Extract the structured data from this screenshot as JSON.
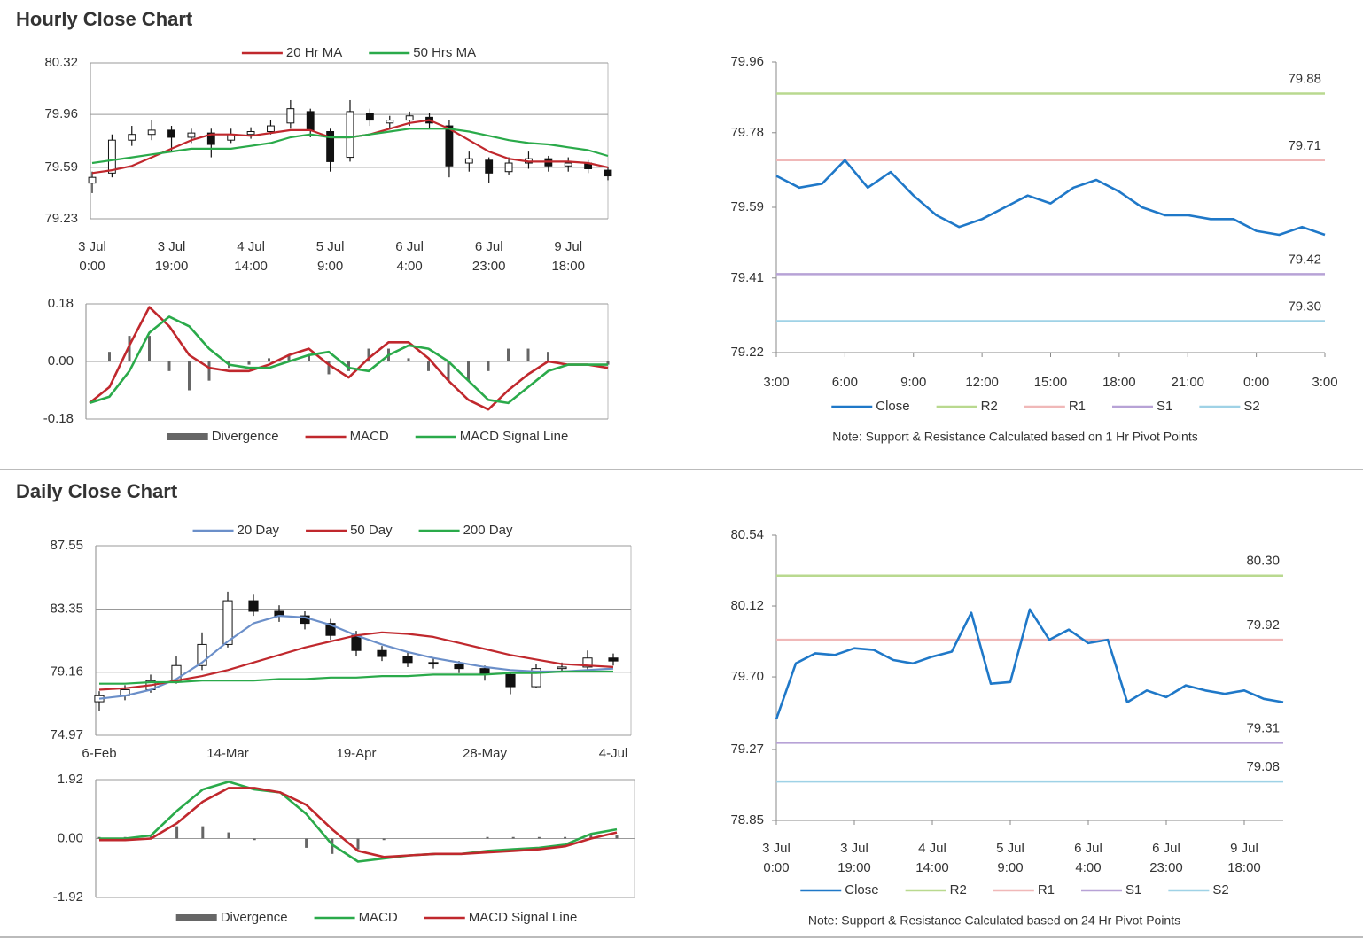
{
  "headings": [
    "Hourly Close Chart",
    "Daily Close Chart"
  ],
  "chart_data": [
    {
      "type": "candlestick",
      "grid": true,
      "ylim": [
        79.23,
        80.32
      ],
      "yticks": [
        80.32,
        79.96,
        79.59,
        79.23
      ],
      "candle_color": "#111111",
      "categories": [
        [
          "3 Jul",
          "0:00"
        ],
        null,
        null,
        null,
        [
          "3 Jul",
          "19:00"
        ],
        null,
        null,
        null,
        [
          "4 Jul",
          "14:00"
        ],
        null,
        null,
        null,
        [
          "5 Jul",
          "9:00"
        ],
        null,
        null,
        null,
        [
          "6 Jul",
          "4:00"
        ],
        null,
        null,
        null,
        [
          "6 Jul",
          "23:00"
        ],
        null,
        null,
        null,
        [
          "9 Jul",
          "18:00"
        ],
        null,
        null
      ],
      "open": [
        79.48,
        79.55,
        79.78,
        79.82,
        79.85,
        79.8,
        79.83,
        79.78,
        79.82,
        79.84,
        79.9,
        79.98,
        79.84,
        79.66,
        79.97,
        79.9,
        79.92,
        79.94,
        79.88,
        79.62,
        79.64,
        79.56,
        79.62,
        79.65,
        79.6,
        79.62,
        79.57
      ],
      "high": [
        79.56,
        79.82,
        79.88,
        79.92,
        79.88,
        79.86,
        79.86,
        79.86,
        79.87,
        79.92,
        80.06,
        80.0,
        79.86,
        80.06,
        80.0,
        79.95,
        79.98,
        79.97,
        79.92,
        79.7,
        79.66,
        79.66,
        79.7,
        79.67,
        79.66,
        79.64,
        79.59
      ],
      "low": [
        79.41,
        79.52,
        79.74,
        79.78,
        79.7,
        79.76,
        79.66,
        79.76,
        79.79,
        79.82,
        79.86,
        79.8,
        79.56,
        79.63,
        79.88,
        79.86,
        79.88,
        79.86,
        79.52,
        79.56,
        79.48,
        79.54,
        79.58,
        79.56,
        79.56,
        79.55,
        79.5
      ],
      "close": [
        79.52,
        79.78,
        79.82,
        79.85,
        79.8,
        79.83,
        79.75,
        79.82,
        79.84,
        79.88,
        80.0,
        79.85,
        79.63,
        79.98,
        79.92,
        79.92,
        79.95,
        79.9,
        79.6,
        79.65,
        79.55,
        79.62,
        79.65,
        79.6,
        79.62,
        79.58,
        79.53
      ],
      "series": [
        {
          "name": "20 Hr MA",
          "color": "#c0282d",
          "values": [
            79.55,
            79.57,
            79.6,
            79.66,
            79.72,
            79.78,
            79.82,
            79.82,
            79.81,
            79.83,
            79.85,
            79.85,
            79.8,
            79.8,
            79.82,
            79.86,
            79.9,
            79.92,
            79.86,
            79.78,
            79.7,
            79.65,
            79.63,
            79.63,
            79.63,
            79.62,
            79.59
          ]
        },
        {
          "name": "50 Hrs MA",
          "color": "#2aaa4a",
          "values": [
            79.62,
            79.64,
            79.66,
            79.68,
            79.7,
            79.72,
            79.72,
            79.72,
            79.74,
            79.76,
            79.8,
            79.82,
            79.8,
            79.8,
            79.82,
            79.84,
            79.86,
            79.86,
            79.86,
            79.84,
            79.81,
            79.78,
            79.76,
            79.75,
            79.73,
            79.71,
            79.67
          ]
        }
      ]
    },
    {
      "type": "macd",
      "grid": true,
      "ylim": [
        -0.18,
        0.18
      ],
      "yticks": [
        0.18,
        {
          "value": 0,
          "label": "0.00"
        },
        -0.18
      ],
      "series": [
        {
          "name": "Divergence",
          "type": "bar",
          "color": "#666666",
          "values": [
            0.0,
            0.03,
            0.08,
            0.08,
            -0.03,
            -0.09,
            -0.06,
            -0.02,
            -0.01,
            0.01,
            0.02,
            0.02,
            -0.04,
            -0.03,
            0.04,
            0.04,
            0.01,
            -0.03,
            -0.06,
            -0.06,
            -0.03,
            0.04,
            0.04,
            0.03,
            0.0,
            0.0,
            -0.01
          ]
        },
        {
          "name": "MACD",
          "type": "line",
          "color": "#c0282d",
          "values": [
            -0.13,
            -0.08,
            0.05,
            0.17,
            0.11,
            0.02,
            -0.02,
            -0.03,
            -0.03,
            -0.01,
            0.02,
            0.04,
            -0.01,
            -0.05,
            0.01,
            0.06,
            0.06,
            0.01,
            -0.06,
            -0.12,
            -0.15,
            -0.09,
            -0.04,
            0.0,
            -0.01,
            -0.01,
            -0.02
          ]
        },
        {
          "name": "MACD Signal Line",
          "type": "line",
          "color": "#2aaa4a",
          "values": [
            -0.13,
            -0.11,
            -0.03,
            0.09,
            0.14,
            0.11,
            0.04,
            -0.01,
            -0.02,
            -0.02,
            0.0,
            0.02,
            0.03,
            -0.02,
            -0.03,
            0.02,
            0.05,
            0.04,
            0.0,
            -0.06,
            -0.12,
            -0.13,
            -0.08,
            -0.03,
            -0.01,
            -0.01,
            -0.01
          ]
        }
      ]
    },
    {
      "type": "line",
      "grid": false,
      "ylim": [
        79.22,
        79.96
      ],
      "yticks": [
        79.96,
        79.78,
        79.59,
        79.41,
        79.22
      ],
      "categories": [
        "3:00",
        null,
        null,
        "6:00",
        null,
        null,
        "9:00",
        null,
        null,
        "12:00",
        null,
        null,
        "15:00",
        null,
        null,
        "18:00",
        null,
        null,
        "21:00",
        null,
        null,
        "0:00",
        null,
        null,
        "3:00"
      ],
      "series": [
        {
          "name": "Close",
          "color": "#1f78c8",
          "values": [
            79.67,
            79.64,
            79.65,
            79.71,
            79.64,
            79.68,
            79.62,
            79.57,
            79.54,
            79.56,
            79.59,
            79.62,
            79.6,
            79.64,
            79.66,
            79.63,
            79.59,
            79.57,
            79.57,
            79.56,
            79.56,
            79.53,
            79.52,
            79.54,
            79.52
          ]
        }
      ],
      "levels": [
        {
          "name": "R2",
          "color": "#b9d98f",
          "value": 79.88
        },
        {
          "name": "R1",
          "color": "#f0b8b8",
          "value": 79.71
        },
        {
          "name": "S1",
          "color": "#b7a2d6",
          "value": 79.42
        },
        {
          "name": "S2",
          "color": "#9fd2e6",
          "value": 79.3,
          "value_label": "79.30"
        }
      ],
      "note": "Note: Support & Resistance Calculated based on 1 Hr Pivot Points"
    },
    {
      "type": "candlestick",
      "grid": true,
      "ylim": [
        74.97,
        87.55
      ],
      "yticks": [
        87.55,
        83.35,
        79.16,
        74.97
      ],
      "candle_color": "#111111",
      "categories": [
        "6-Feb",
        null,
        null,
        null,
        null,
        "14-Mar",
        null,
        null,
        null,
        null,
        "19-Apr",
        null,
        null,
        null,
        null,
        "28-May",
        null,
        null,
        null,
        null,
        "4-Jul"
      ],
      "open": [
        77.2,
        77.6,
        78.0,
        78.6,
        79.6,
        81.0,
        83.9,
        83.2,
        82.9,
        82.4,
        81.6,
        80.6,
        80.2,
        79.8,
        79.7,
        79.4,
        79.0,
        78.2,
        79.4,
        79.5,
        80.1
      ],
      "high": [
        77.9,
        78.3,
        79.0,
        80.2,
        81.8,
        84.5,
        84.3,
        83.6,
        83.2,
        82.7,
        81.9,
        80.9,
        80.5,
        80.1,
        79.9,
        79.6,
        79.2,
        79.7,
        79.8,
        80.6,
        80.4
      ],
      "low": [
        76.6,
        77.3,
        77.8,
        78.4,
        79.3,
        80.8,
        82.9,
        82.5,
        82.0,
        81.3,
        80.2,
        79.9,
        79.5,
        79.4,
        79.1,
        78.6,
        77.7,
        78.1,
        79.2,
        79.3,
        79.6
      ],
      "close": [
        77.6,
        78.0,
        78.6,
        79.6,
        81.0,
        83.9,
        83.2,
        82.9,
        82.4,
        81.6,
        80.6,
        80.2,
        79.8,
        79.7,
        79.4,
        79.0,
        78.2,
        79.4,
        79.5,
        80.1,
        79.9
      ],
      "series": [
        {
          "name": "20 Day",
          "color": "#6b8fc9",
          "values": [
            77.4,
            77.6,
            78.0,
            78.7,
            79.8,
            81.2,
            82.4,
            82.9,
            82.8,
            82.3,
            81.6,
            81.0,
            80.5,
            80.1,
            79.8,
            79.5,
            79.3,
            79.2,
            79.2,
            79.3,
            79.4
          ]
        },
        {
          "name": "50 Day",
          "color": "#c0282d",
          "values": [
            78.0,
            78.1,
            78.3,
            78.6,
            78.9,
            79.3,
            79.8,
            80.3,
            80.8,
            81.2,
            81.6,
            81.8,
            81.7,
            81.5,
            81.1,
            80.7,
            80.3,
            80.0,
            79.7,
            79.6,
            79.5
          ]
        },
        {
          "name": "200 Day",
          "color": "#2aaa4a",
          "values": [
            78.4,
            78.4,
            78.5,
            78.5,
            78.6,
            78.6,
            78.6,
            78.7,
            78.7,
            78.8,
            78.8,
            78.9,
            78.9,
            79.0,
            79.0,
            79.0,
            79.1,
            79.1,
            79.2,
            79.2,
            79.2
          ]
        }
      ]
    },
    {
      "type": "macd",
      "grid": true,
      "ylim": [
        -1.92,
        1.92
      ],
      "yticks": [
        1.92,
        {
          "value": 0,
          "label": "0.00"
        },
        -1.92
      ],
      "series": [
        {
          "name": "Divergence",
          "type": "bar",
          "color": "#666666",
          "values": [
            0.05,
            0.05,
            0.1,
            0.4,
            0.4,
            0.2,
            -0.05,
            0.0,
            -0.3,
            -0.5,
            -0.35,
            -0.05,
            0.0,
            0.0,
            0.0,
            0.05,
            0.05,
            0.05,
            0.05,
            0.15,
            0.1
          ]
        },
        {
          "name": "MACD",
          "type": "line",
          "color": "#2aaa4a",
          "values": [
            0.0,
            0.0,
            0.1,
            0.9,
            1.6,
            1.85,
            1.6,
            1.5,
            0.8,
            -0.2,
            -0.75,
            -0.65,
            -0.55,
            -0.5,
            -0.5,
            -0.4,
            -0.35,
            -0.3,
            -0.2,
            0.15,
            0.3
          ]
        },
        {
          "name": "MACD Signal Line",
          "type": "line",
          "color": "#c0282d",
          "values": [
            -0.05,
            -0.05,
            0.0,
            0.5,
            1.2,
            1.65,
            1.65,
            1.5,
            1.1,
            0.3,
            -0.4,
            -0.6,
            -0.55,
            -0.5,
            -0.5,
            -0.45,
            -0.4,
            -0.35,
            -0.25,
            0.0,
            0.2
          ]
        }
      ]
    },
    {
      "type": "line",
      "grid": false,
      "ylim": [
        78.85,
        80.54
      ],
      "yticks": [
        80.54,
        80.12,
        {
          "value": 79.7,
          "label": "79.70"
        },
        79.27,
        78.85
      ],
      "categories": [
        [
          "3 Jul",
          "0:00"
        ],
        null,
        null,
        null,
        [
          "3 Jul",
          "19:00"
        ],
        null,
        null,
        null,
        [
          "4 Jul",
          "14:00"
        ],
        null,
        null,
        null,
        [
          "5 Jul",
          "9:00"
        ],
        null,
        null,
        null,
        [
          "6 Jul",
          "4:00"
        ],
        null,
        null,
        null,
        [
          "6 Jul",
          "23:00"
        ],
        null,
        null,
        null,
        [
          "9 Jul",
          "18:00"
        ],
        null,
        null
      ],
      "series": [
        {
          "name": "Close",
          "color": "#1f78c8",
          "values": [
            79.45,
            79.78,
            79.84,
            79.83,
            79.87,
            79.86,
            79.8,
            79.78,
            79.82,
            79.85,
            80.08,
            79.66,
            79.67,
            80.1,
            79.92,
            79.98,
            79.9,
            79.92,
            79.55,
            79.62,
            79.58,
            79.65,
            79.62,
            79.6,
            79.62,
            79.57,
            79.55
          ]
        }
      ],
      "levels": [
        {
          "name": "R2",
          "color": "#b9d98f",
          "value": 80.3,
          "value_label": "80.30"
        },
        {
          "name": "R1",
          "color": "#f0b8b8",
          "value": 79.92
        },
        {
          "name": "S1",
          "color": "#b7a2d6",
          "value": 79.31
        },
        {
          "name": "S2",
          "color": "#9fd2e6",
          "value": 79.08
        }
      ],
      "note": "Note: Support & Resistance Calculated based on 24 Hr Pivot Points"
    }
  ]
}
